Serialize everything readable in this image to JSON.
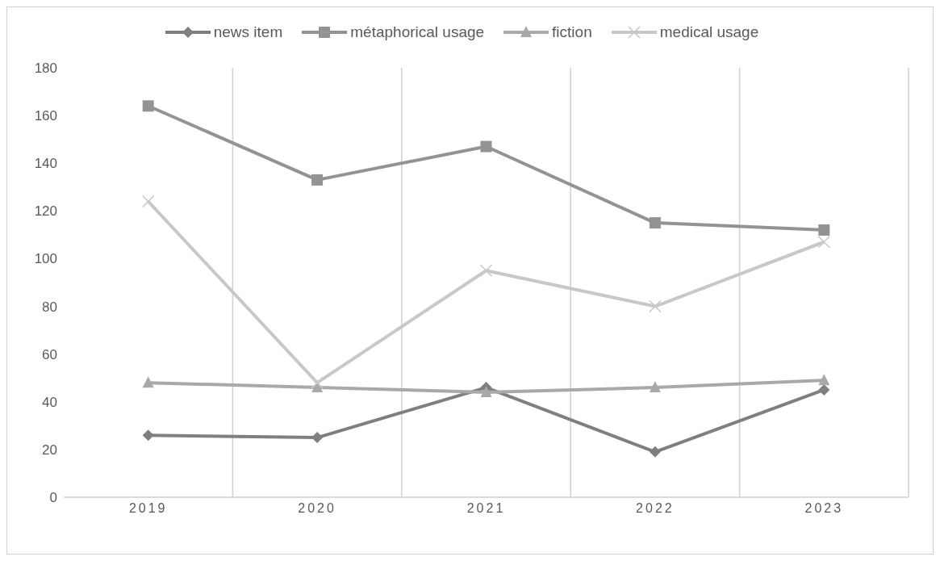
{
  "chart_data": {
    "type": "line",
    "categories": [
      "2019",
      "2020",
      "2021",
      "2022",
      "2023"
    ],
    "series": [
      {
        "name": "news item",
        "color": "#7f7f82",
        "marker": "diamond",
        "values": [
          26,
          25,
          46,
          19,
          45
        ]
      },
      {
        "name": "métaphorical usage",
        "color": "#939396",
        "marker": "square",
        "values": [
          164,
          133,
          147,
          115,
          112
        ]
      },
      {
        "name": "fiction",
        "color": "#a9a9ab",
        "marker": "triangle",
        "values": [
          48,
          46,
          44,
          46,
          49
        ]
      },
      {
        "name": "medical usage",
        "color": "#c8c8c8",
        "marker": "cross",
        "values": [
          124,
          48,
          95,
          80,
          107
        ]
      }
    ],
    "ylim": [
      0,
      180
    ],
    "yticks": [
      0,
      20,
      40,
      60,
      80,
      100,
      120,
      140,
      160,
      180
    ],
    "grid": "x",
    "legend": "top",
    "line_style": "solid"
  }
}
